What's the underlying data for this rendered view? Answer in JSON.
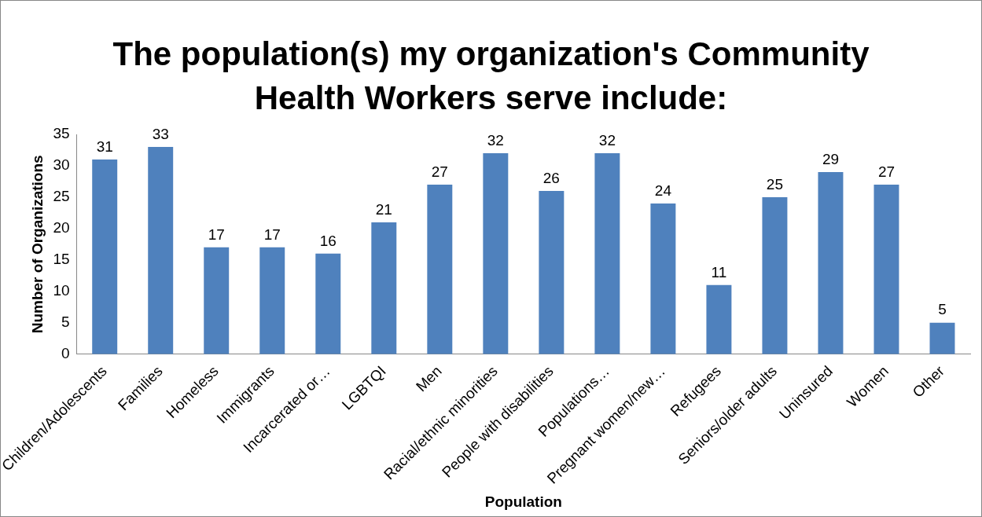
{
  "chart_data": {
    "type": "bar",
    "title": "The population(s) my organization's Community Health Workers serve include:",
    "xlabel": "Population",
    "ylabel": "Number of Organizations",
    "categories": [
      "Children/Adolescents",
      "Families",
      "Homeless",
      "Immigrants",
      "Incarcerated or…",
      "LGBTQI",
      "Men",
      "Racial/ethnic minorities",
      "People with disabilities",
      "Populations…",
      "Pregnant women/new…",
      "Refugees",
      "Seniors/older adults",
      "Uninsured",
      "Women",
      "Other"
    ],
    "values": [
      31,
      33,
      17,
      17,
      16,
      21,
      27,
      32,
      26,
      32,
      24,
      11,
      25,
      29,
      27,
      5
    ],
    "color": "#4f81bd",
    "ylim": [
      0,
      35
    ],
    "yticks": [
      0,
      5,
      10,
      15,
      20,
      25,
      30,
      35
    ],
    "grid": false,
    "legend": false,
    "data_labels": true
  }
}
